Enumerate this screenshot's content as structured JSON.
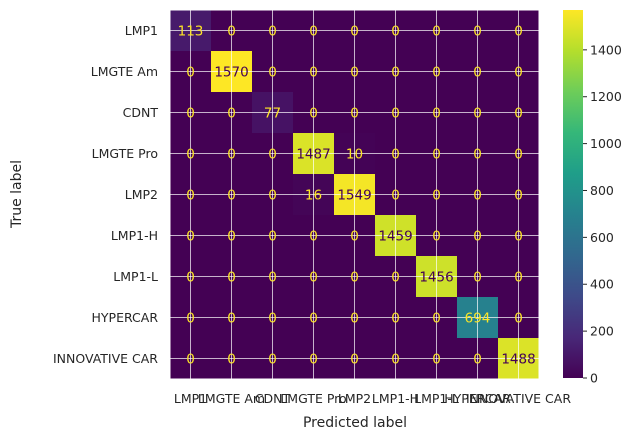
{
  "chart_data": {
    "type": "heatmap",
    "title": "",
    "xlabel": "Predicted label",
    "ylabel": "True label",
    "row_labels": [
      "LMP1",
      "LMGTE Am",
      "CDNT",
      "LMGTE Pro",
      "LMP2",
      "LMP1-H",
      "LMP1-L",
      "HYPERCAR",
      "INNOVATIVE CAR"
    ],
    "col_labels": [
      "LMP1",
      "LMGTE Am",
      "CDNT",
      "LMGTE Pro",
      "LMP2",
      "LMP1-H",
      "LMP1-L",
      "HYPERCAR",
      "INNOVATIVE CAR"
    ],
    "matrix": [
      [
        113,
        0,
        0,
        0,
        0,
        0,
        0,
        0,
        0
      ],
      [
        0,
        1570,
        0,
        0,
        0,
        0,
        0,
        0,
        0
      ],
      [
        0,
        0,
        77,
        0,
        0,
        0,
        0,
        0,
        0
      ],
      [
        0,
        0,
        0,
        1487,
        10,
        0,
        0,
        0,
        0
      ],
      [
        0,
        0,
        0,
        16,
        1549,
        0,
        0,
        0,
        0
      ],
      [
        0,
        0,
        0,
        0,
        0,
        1459,
        0,
        0,
        0
      ],
      [
        0,
        0,
        0,
        0,
        0,
        0,
        1456,
        0,
        0
      ],
      [
        0,
        0,
        0,
        0,
        0,
        0,
        0,
        694,
        0
      ],
      [
        0,
        0,
        0,
        0,
        0,
        0,
        0,
        0,
        1488
      ]
    ],
    "colormap": "viridis",
    "colorbar": {
      "min": 0,
      "max": 1570,
      "ticks": [
        0,
        200,
        400,
        600,
        800,
        1000,
        1200,
        1400
      ]
    },
    "grid": true
  }
}
